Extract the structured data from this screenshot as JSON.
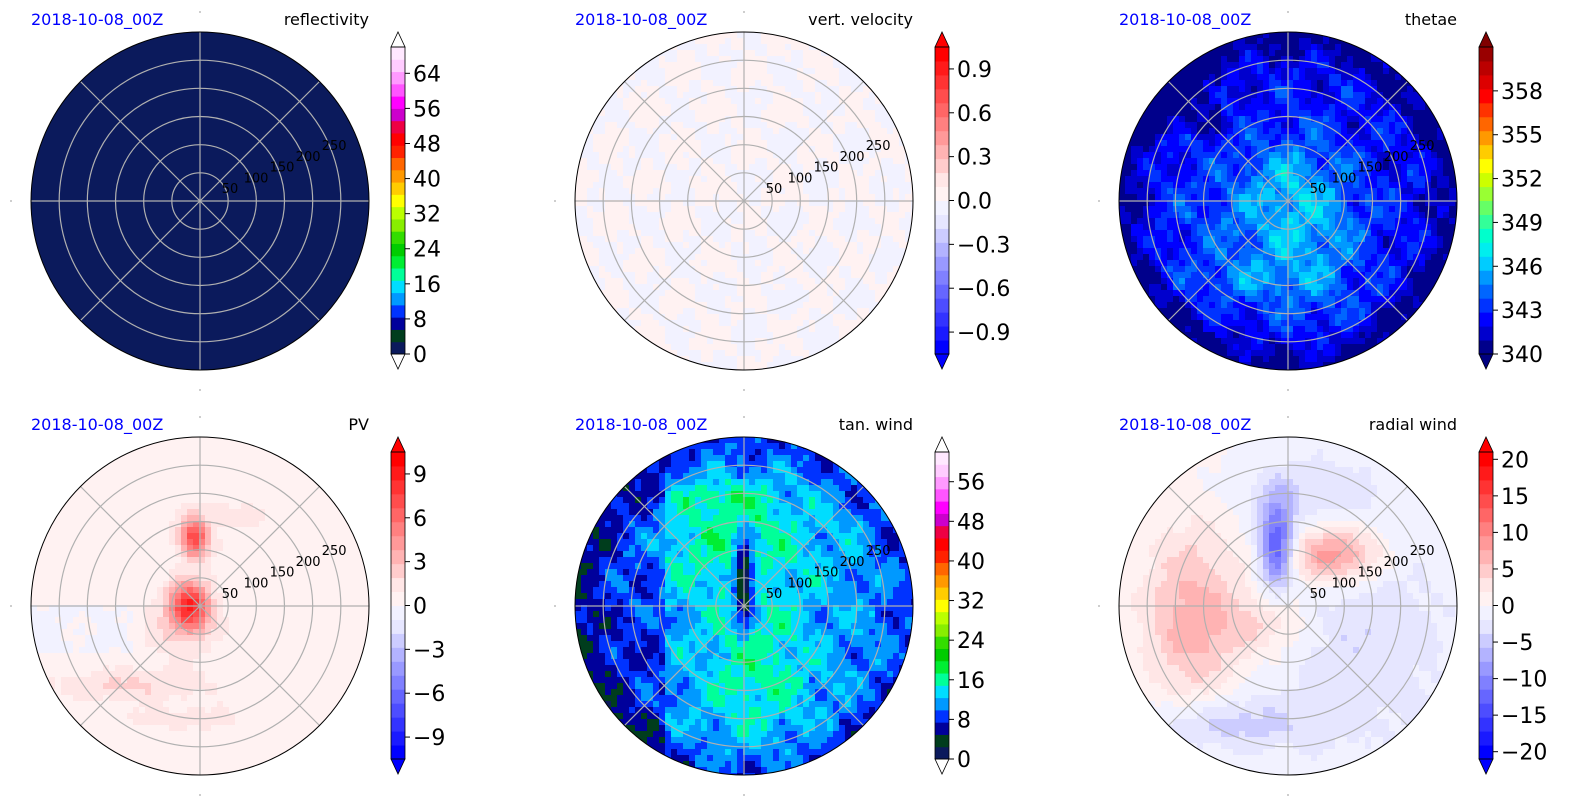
{
  "panels": [
    {
      "date": "2018-10-08_00Z",
      "title": "reflectivity",
      "field": "refl",
      "colorbar": {
        "min": 0,
        "max": 70,
        "ticks": [
          0,
          8,
          16,
          24,
          32,
          40,
          48,
          56,
          64
        ],
        "labels": [
          "0",
          "8",
          "16",
          "24",
          "32",
          "40",
          "48",
          "56",
          "64"
        ],
        "colors": [
          "#0b1a5c",
          "#003d1d",
          "#00009b",
          "#0033ff",
          "#0099ff",
          "#00ddff",
          "#00ff99",
          "#00ee33",
          "#00cc00",
          "#33dd00",
          "#88ee00",
          "#bbff00",
          "#ffff00",
          "#ffcc00",
          "#ff9900",
          "#ff6600",
          "#ff2200",
          "#ff0000",
          "#ee0044",
          "#cc00cc",
          "#ff00ff",
          "#ff55ff",
          "#ff99ff",
          "#ffccff",
          "#ffe8ff"
        ],
        "ext": "both",
        "ext_lo": "#ffffff",
        "ext_hi": "#ffffff"
      }
    },
    {
      "date": "2018-10-08_00Z",
      "title": "vert. velocity",
      "field": "w",
      "colorbar": {
        "min": -1.05,
        "max": 1.05,
        "ticks": [
          -0.9,
          -0.6,
          -0.3,
          0.0,
          0.3,
          0.6,
          0.9
        ],
        "labels": [
          "−0.9",
          "−0.6",
          "−0.3",
          "0.0",
          "0.3",
          "0.6",
          "0.9"
        ],
        "colors": [
          "#0000ff",
          "#1a1aff",
          "#3333ff",
          "#4d4dff",
          "#6666ff",
          "#8080ff",
          "#9999ff",
          "#b3b3ff",
          "#ccccff",
          "#e6e6ff",
          "#f2f2ff",
          "#fff2f2",
          "#ffe6e6",
          "#ffcccc",
          "#ffb3b3",
          "#ff9999",
          "#ff8080",
          "#ff6666",
          "#ff4d4d",
          "#ff3333",
          "#ff1a1a",
          "#ff0000"
        ],
        "ext": "both",
        "ext_lo": "#0000ff",
        "ext_hi": "#ff0000"
      }
    },
    {
      "date": "2018-10-08_00Z",
      "title": "thetae",
      "field": "thetae",
      "colorbar": {
        "min": 340,
        "max": 361,
        "ticks": [
          340,
          343,
          346,
          349,
          352,
          355,
          358
        ],
        "labels": [
          "340",
          "343",
          "346",
          "349",
          "352",
          "355",
          "358"
        ],
        "colors": [
          "#00008b",
          "#0000cd",
          "#0000ff",
          "#0033ff",
          "#0066ff",
          "#0099ff",
          "#00ccff",
          "#00eeee",
          "#00ffcc",
          "#33ff99",
          "#66ff66",
          "#99ff33",
          "#ccff00",
          "#ffff00",
          "#ffcc00",
          "#ff9900",
          "#ff6600",
          "#ff3300",
          "#ff0000",
          "#dd0000",
          "#bb0000",
          "#990000"
        ],
        "ext": "both",
        "ext_lo": "#000080",
        "ext_hi": "#800000"
      }
    },
    {
      "date": "2018-10-08_00Z",
      "title": "PV",
      "field": "pv",
      "colorbar": {
        "min": -10.5,
        "max": 10.5,
        "ticks": [
          -9,
          -6,
          -3,
          0,
          3,
          6,
          9
        ],
        "labels": [
          "−9",
          "−6",
          "−3",
          "0",
          "3",
          "6",
          "9"
        ],
        "colors": [
          "#0000ff",
          "#1a1aff",
          "#3333ff",
          "#4d4dff",
          "#6666ff",
          "#8080ff",
          "#9999ff",
          "#b3b3ff",
          "#ccccff",
          "#e6e6ff",
          "#f2f2ff",
          "#fff2f2",
          "#ffe6e6",
          "#ffcccc",
          "#ffb3b3",
          "#ff9999",
          "#ff8080",
          "#ff6666",
          "#ff4d4d",
          "#ff3333",
          "#ff1a1a",
          "#ff0000"
        ],
        "ext": "both",
        "ext_lo": "#0000ff",
        "ext_hi": "#ff0000"
      }
    },
    {
      "date": "2018-10-08_00Z",
      "title": "tan. wind",
      "field": "vt",
      "colorbar": {
        "min": 0,
        "max": 62,
        "ticks": [
          0,
          8,
          16,
          24,
          32,
          40,
          48,
          56
        ],
        "labels": [
          "0",
          "8",
          "16",
          "24",
          "32",
          "40",
          "48",
          "56"
        ],
        "colors": [
          "#0b1a5c",
          "#003d1d",
          "#00009b",
          "#0033ff",
          "#0099ff",
          "#00ddff",
          "#00ff99",
          "#00ee33",
          "#00cc00",
          "#33dd00",
          "#88ee00",
          "#bbff00",
          "#ffff00",
          "#ffcc00",
          "#ff9900",
          "#ff6600",
          "#ff2200",
          "#ff0000",
          "#ee0044",
          "#cc00cc",
          "#ff00ff",
          "#ff55ff",
          "#ff99ff",
          "#ffccff",
          "#ffe8ff"
        ],
        "ext": "both",
        "ext_lo": "#ffffff",
        "ext_hi": "#ffffff"
      }
    },
    {
      "date": "2018-10-08_00Z",
      "title": "radial wind",
      "field": "vr",
      "colorbar": {
        "min": -21,
        "max": 21,
        "ticks": [
          -20,
          -15,
          -10,
          -5,
          0,
          5,
          10,
          15,
          20
        ],
        "labels": [
          "−20",
          "−15",
          "−10",
          "−5",
          "0",
          "5",
          "10",
          "15",
          "20"
        ],
        "colors": [
          "#0000ff",
          "#1a1aff",
          "#3333ff",
          "#4d4dff",
          "#6666ff",
          "#8080ff",
          "#9999ff",
          "#b3b3ff",
          "#ccccff",
          "#e6e6ff",
          "#f2f2ff",
          "#fff2f2",
          "#ffe6e6",
          "#ffcccc",
          "#ffb3b3",
          "#ff9999",
          "#ff8080",
          "#ff6666",
          "#ff4d4d",
          "#ff3333",
          "#ff1a1a",
          "#ff0000"
        ],
        "ext": "both",
        "ext_lo": "#0000ff",
        "ext_hi": "#ff0000"
      }
    }
  ],
  "chart_data": [
    {
      "type": "heatmap",
      "title": "reflectivity",
      "projection": "polar",
      "radial_ticks": [
        50,
        100,
        150,
        200,
        250
      ],
      "rlim": [
        0,
        300
      ],
      "grid": true,
      "note_values": "uniform 0 (dark navy) over whole domain",
      "colorbar_range": [
        0,
        64
      ]
    },
    {
      "type": "heatmap",
      "title": "vert. velocity",
      "projection": "polar",
      "radial_ticks": [
        50,
        100,
        150,
        200,
        250
      ],
      "rlim": [
        0,
        300
      ],
      "grid": true,
      "note_values": "near 0 everywhere",
      "colorbar_range": [
        -0.9,
        0.9
      ]
    },
    {
      "type": "heatmap",
      "title": "thetae",
      "projection": "polar",
      "radial_ticks": [
        50,
        100,
        150,
        200,
        250
      ],
      "rlim": [
        0,
        300
      ],
      "grid": true,
      "colorbar_range": [
        340,
        358
      ],
      "approx_range": [
        340,
        348
      ]
    },
    {
      "type": "heatmap",
      "title": "PV",
      "projection": "polar",
      "radial_ticks": [
        50,
        100,
        150,
        200,
        250
      ],
      "rlim": [
        0,
        300
      ],
      "grid": true,
      "colorbar_range": [
        -9,
        9
      ],
      "approx_range": [
        -1,
        8
      ]
    },
    {
      "type": "heatmap",
      "title": "tan. wind",
      "projection": "polar",
      "radial_ticks": [
        50,
        100,
        150,
        200,
        250
      ],
      "rlim": [
        0,
        300
      ],
      "grid": true,
      "colorbar_range": [
        0,
        56
      ],
      "approx_range": [
        0,
        24
      ]
    },
    {
      "type": "heatmap",
      "title": "radial wind",
      "projection": "polar",
      "radial_ticks": [
        50,
        100,
        150,
        200,
        250
      ],
      "rlim": [
        0,
        300
      ],
      "grid": true,
      "colorbar_range": [
        -20,
        20
      ],
      "approx_range": [
        -18,
        12
      ]
    }
  ]
}
